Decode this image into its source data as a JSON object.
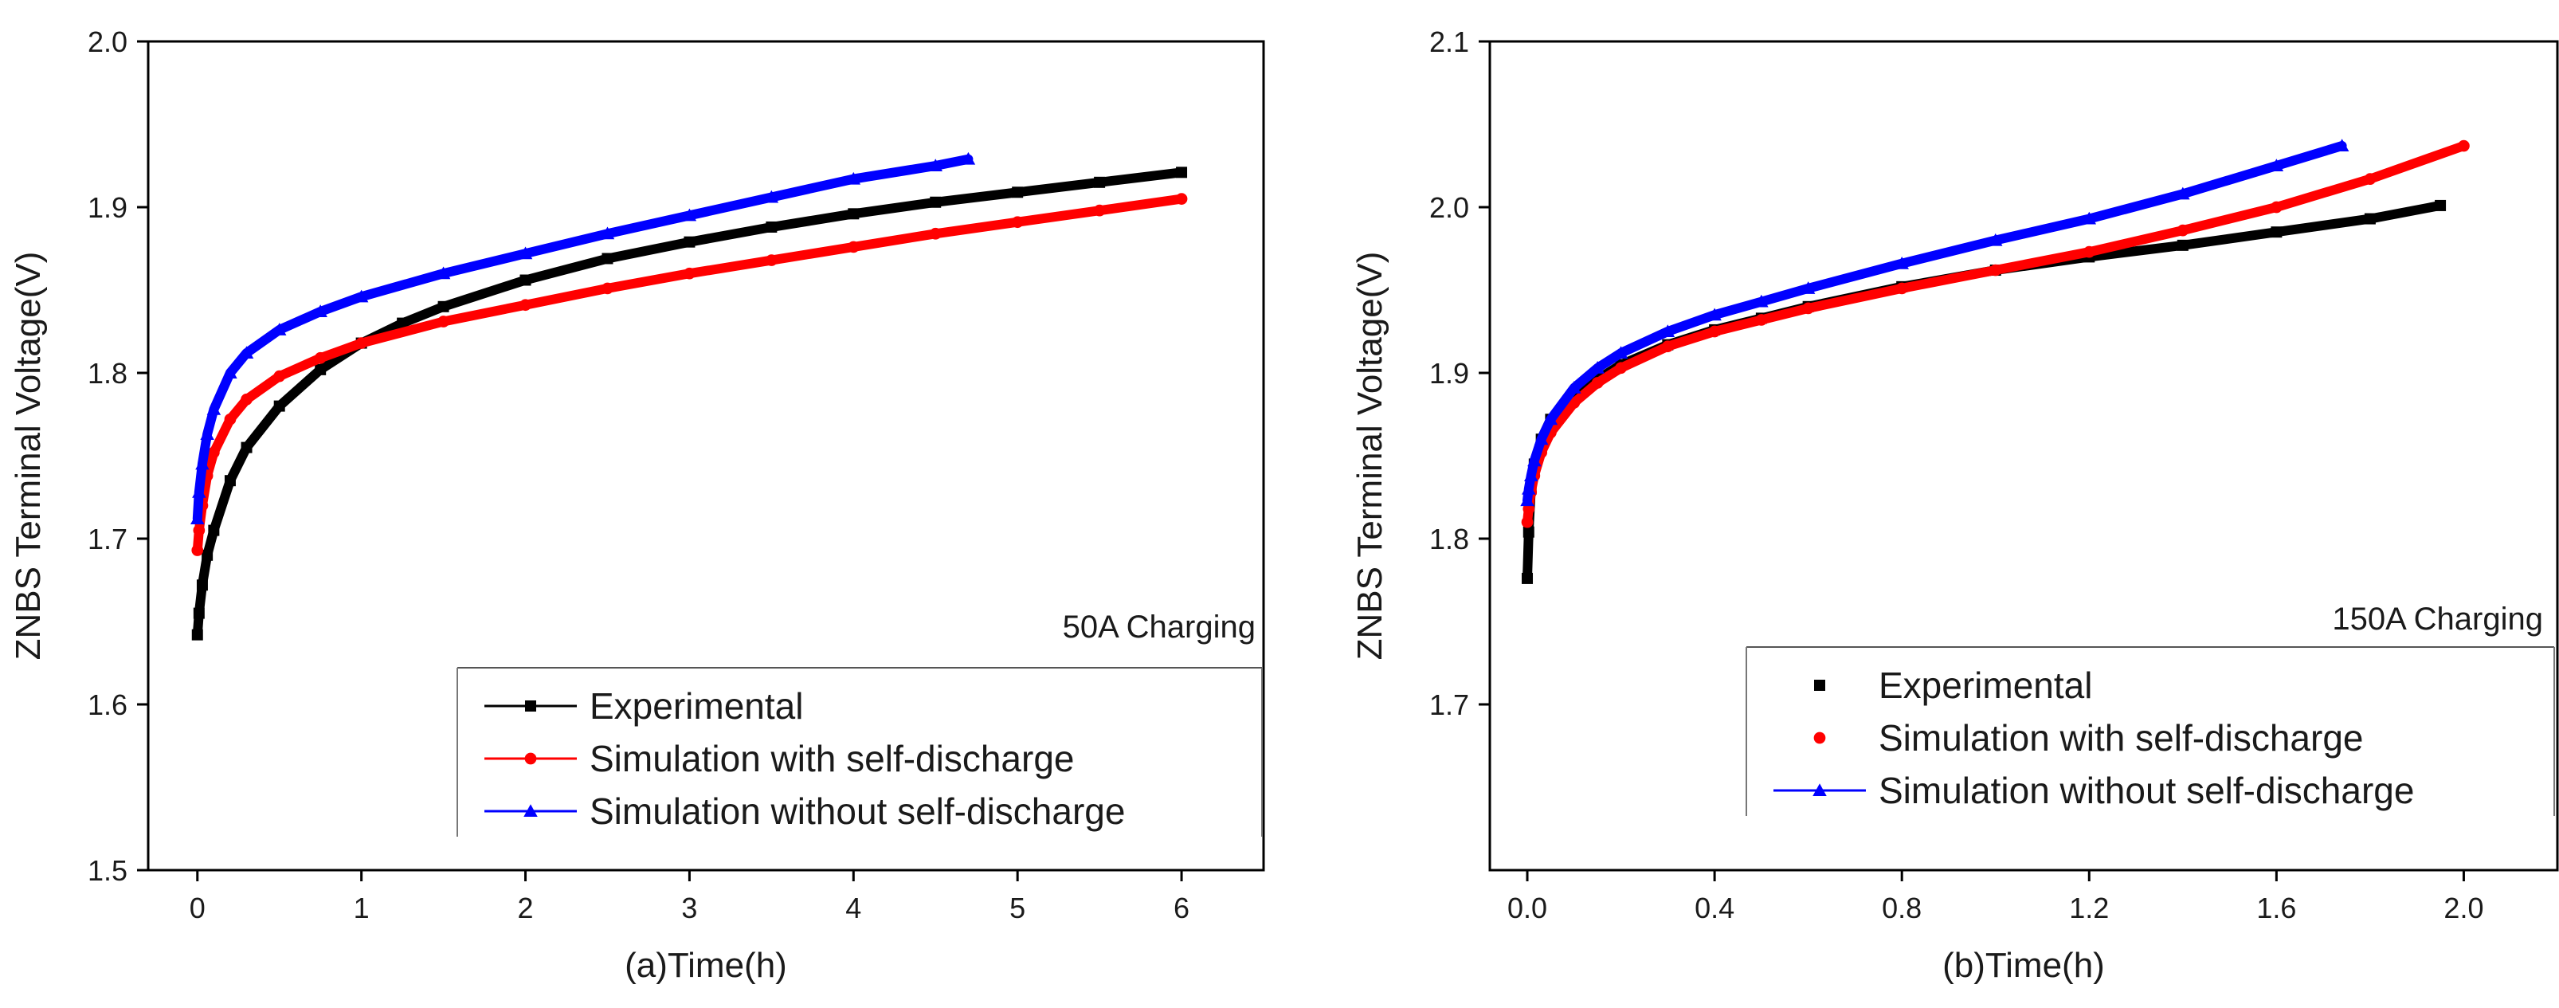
{
  "chart_data": [
    {
      "type": "line",
      "panel": "a",
      "title": "",
      "xlabel": "(a)Time(h)",
      "ylabel": "ZNBS Terminal Voltage(V)",
      "xlim": [
        -0.3,
        6.5
      ],
      "ylim": [
        1.5,
        2.0
      ],
      "xticks": [
        0,
        1,
        2,
        3,
        4,
        5,
        6
      ],
      "yticks": [
        1.5,
        1.6,
        1.7,
        1.8,
        1.9,
        2.0
      ],
      "xtick_labels": [
        "0",
        "1",
        "2",
        "3",
        "4",
        "5",
        "6"
      ],
      "ytick_labels": [
        "1.5",
        "1.6",
        "1.7",
        "1.8",
        "1.9",
        "2.0"
      ],
      "grid": false,
      "legend_position": "bottom-right",
      "annotation": "50A Charging",
      "series": [
        {
          "name": "Experimental",
          "color": "#000000",
          "marker": "square",
          "x": [
            0,
            0.01,
            0.03,
            0.06,
            0.1,
            0.2,
            0.3,
            0.5,
            0.75,
            1.0,
            1.25,
            1.5,
            2.0,
            2.5,
            3.0,
            3.5,
            4.0,
            4.5,
            5.0,
            5.5,
            6.0
          ],
          "y": [
            1.642,
            1.655,
            1.672,
            1.69,
            1.705,
            1.735,
            1.755,
            1.78,
            1.802,
            1.818,
            1.83,
            1.84,
            1.856,
            1.869,
            1.879,
            1.888,
            1.896,
            1.903,
            1.909,
            1.915,
            1.921
          ]
        },
        {
          "name": "Simulation with self-discharge",
          "color": "#ff0000",
          "marker": "circle",
          "x": [
            0,
            0.01,
            0.03,
            0.06,
            0.1,
            0.2,
            0.3,
            0.5,
            0.75,
            1.0,
            1.5,
            2.0,
            2.5,
            3.0,
            3.5,
            4.0,
            4.5,
            5.0,
            5.5,
            6.0
          ],
          "y": [
            1.693,
            1.705,
            1.72,
            1.738,
            1.752,
            1.772,
            1.784,
            1.798,
            1.809,
            1.818,
            1.831,
            1.841,
            1.851,
            1.86,
            1.868,
            1.876,
            1.884,
            1.891,
            1.898,
            1.905
          ]
        },
        {
          "name": "Simulation without self-discharge",
          "color": "#0000ff",
          "marker": "triangle",
          "x": [
            0,
            0.01,
            0.03,
            0.06,
            0.1,
            0.2,
            0.3,
            0.5,
            0.75,
            1.0,
            1.5,
            2.0,
            2.5,
            3.0,
            3.5,
            4.0,
            4.5,
            4.7
          ],
          "y": [
            1.712,
            1.728,
            1.745,
            1.763,
            1.778,
            1.8,
            1.812,
            1.826,
            1.837,
            1.846,
            1.86,
            1.872,
            1.884,
            1.895,
            1.906,
            1.917,
            1.925,
            1.929
          ]
        }
      ]
    },
    {
      "type": "line",
      "panel": "b",
      "title": "",
      "xlabel": "(b)Time(h)",
      "ylabel": "ZNBS Terminal Voltage(V)",
      "xlim": [
        -0.08,
        2.2
      ],
      "ylim": [
        1.6,
        2.1
      ],
      "xticks": [
        0,
        0.4,
        0.8,
        1.2,
        1.6,
        2.0
      ],
      "yticks": [
        1.7,
        1.8,
        1.9,
        2.0,
        2.1
      ],
      "xtick_labels": [
        "0.0",
        "0.4",
        "0.8",
        "1.2",
        "1.6",
        "2.0"
      ],
      "ytick_labels": [
        "1.7",
        "1.8",
        "1.9",
        "2.0",
        "2.1"
      ],
      "grid": false,
      "legend_position": "bottom-right",
      "annotation": "150A Charging",
      "series": [
        {
          "name": "Experimental",
          "color": "#000000",
          "marker": "square",
          "x": [
            0,
            0.003,
            0.008,
            0.015,
            0.03,
            0.05,
            0.1,
            0.15,
            0.2,
            0.3,
            0.4,
            0.5,
            0.6,
            0.8,
            1.0,
            1.2,
            1.4,
            1.6,
            1.8,
            1.95
          ],
          "y": [
            1.776,
            1.804,
            1.83,
            1.845,
            1.86,
            1.872,
            1.886,
            1.896,
            1.905,
            1.917,
            1.926,
            1.933,
            1.94,
            1.952,
            1.962,
            1.97,
            1.977,
            1.985,
            1.993,
            2.001
          ]
        },
        {
          "name": "Simulation with self-discharge",
          "color": "#ff0000",
          "marker": "circle",
          "x": [
            0,
            0.003,
            0.008,
            0.015,
            0.03,
            0.05,
            0.1,
            0.15,
            0.2,
            0.3,
            0.4,
            0.5,
            0.6,
            0.8,
            1.0,
            1.2,
            1.4,
            1.6,
            1.8,
            2.0
          ],
          "y": [
            1.81,
            1.818,
            1.828,
            1.838,
            1.852,
            1.864,
            1.882,
            1.894,
            1.903,
            1.916,
            1.925,
            1.932,
            1.939,
            1.951,
            1.962,
            1.973,
            1.986,
            2.0,
            2.017,
            2.037
          ]
        },
        {
          "name": "Simulation without self-discharge",
          "color": "#0000ff",
          "marker": "triangle",
          "x": [
            0,
            0.003,
            0.008,
            0.015,
            0.03,
            0.05,
            0.1,
            0.15,
            0.2,
            0.3,
            0.4,
            0.5,
            0.6,
            0.8,
            1.0,
            1.2,
            1.4,
            1.6,
            1.74
          ],
          "y": [
            1.823,
            1.83,
            1.838,
            1.847,
            1.86,
            1.872,
            1.891,
            1.903,
            1.912,
            1.925,
            1.935,
            1.943,
            1.951,
            1.966,
            1.98,
            1.993,
            2.008,
            2.025,
            2.037
          ]
        }
      ]
    }
  ]
}
